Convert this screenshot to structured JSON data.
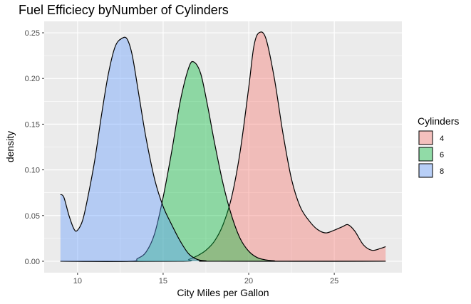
{
  "chart_data": {
    "type": "area",
    "title": "Fuel Efficiecy byNumber of Cylinders",
    "xlabel": "City Miles per Gallon",
    "ylabel": "density",
    "xlim": [
      8.05,
      28.95
    ],
    "ylim": [
      -0.0125,
      0.2625
    ],
    "x_ticks": [
      10,
      15,
      20,
      25
    ],
    "y_ticks": [
      0.0,
      0.05,
      0.1,
      0.15,
      0.2,
      0.25
    ],
    "x_tick_labels": [
      "10",
      "15",
      "20",
      "25"
    ],
    "y_tick_labels": [
      "0.00",
      "0.05",
      "0.10",
      "0.15",
      "0.20",
      "0.25"
    ],
    "grid": true,
    "legend": {
      "title": "Cylinders",
      "position": "right"
    },
    "series": [
      {
        "name": "4",
        "color": "#F8766D",
        "x": [
          9,
          16,
          16.5,
          17,
          17.5,
          18,
          18.5,
          19,
          19.5,
          20,
          20.3,
          20.6,
          21,
          21.5,
          22,
          22.5,
          23,
          23.5,
          24,
          24.5,
          25,
          25.5,
          25.8,
          26.2,
          26.7,
          27.2,
          27.7,
          28
        ],
        "y": [
          0,
          0,
          0.002,
          0.006,
          0.012,
          0.022,
          0.04,
          0.07,
          0.12,
          0.19,
          0.235,
          0.25,
          0.244,
          0.2,
          0.14,
          0.09,
          0.06,
          0.045,
          0.035,
          0.031,
          0.034,
          0.038,
          0.04,
          0.033,
          0.018,
          0.012,
          0.014,
          0.016
        ]
      },
      {
        "name": "6",
        "color": "#00BA38",
        "x": [
          9,
          13,
          13.5,
          14,
          14.5,
          15,
          15.5,
          16,
          16.5,
          16.8,
          17.2,
          17.6,
          18,
          18.5,
          19,
          19.5,
          20,
          20.5,
          21,
          21.5,
          22,
          28
        ],
        "y": [
          0,
          0,
          0.003,
          0.01,
          0.03,
          0.07,
          0.12,
          0.175,
          0.212,
          0.218,
          0.205,
          0.17,
          0.13,
          0.085,
          0.05,
          0.025,
          0.011,
          0.004,
          0.0015,
          0.0005,
          0,
          0
        ]
      },
      {
        "name": "8",
        "color": "#619CFF",
        "x": [
          9,
          9.2,
          9.5,
          9.8,
          10,
          10.3,
          10.6,
          11,
          11.4,
          11.8,
          12.2,
          12.6,
          12.9,
          13.2,
          13.6,
          14,
          14.5,
          15,
          15.5,
          16,
          16.5,
          17,
          17.5,
          18,
          28
        ],
        "y": [
          0.073,
          0.07,
          0.05,
          0.035,
          0.034,
          0.045,
          0.07,
          0.11,
          0.16,
          0.205,
          0.235,
          0.244,
          0.243,
          0.225,
          0.18,
          0.135,
          0.09,
          0.06,
          0.04,
          0.022,
          0.008,
          0.002,
          0.0005,
          0,
          0
        ]
      }
    ]
  }
}
